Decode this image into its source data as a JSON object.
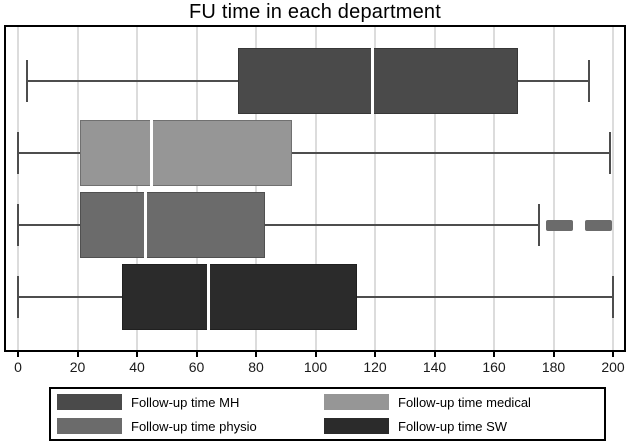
{
  "title": "FU time in each department",
  "chart_data": {
    "type": "boxplot",
    "orientation": "horizontal",
    "title": "FU time in each department",
    "xlabel": "",
    "ylabel": "",
    "xlim": [
      0,
      200
    ],
    "x_ticks": [
      0,
      20,
      40,
      60,
      80,
      100,
      120,
      140,
      160,
      180,
      200
    ],
    "grid": true,
    "legend_position": "bottom",
    "series": [
      {
        "name": "Follow-up time MH",
        "color": "#4a4a4a",
        "min": 3,
        "q1": 74,
        "median": 119,
        "q3": 168,
        "max": 192,
        "outliers": []
      },
      {
        "name": "Follow-up time medical",
        "color": "#969696",
        "min": 0,
        "q1": 21,
        "median": 45,
        "q3": 92,
        "max": 199,
        "outliers": []
      },
      {
        "name": "Follow-up time physio",
        "color": "#6b6b6b",
        "min": 0,
        "q1": 21,
        "median": 43,
        "q3": 83,
        "max": 175,
        "outliers": [
          182,
          195
        ]
      },
      {
        "name": "Follow-up time SW",
        "color": "#2b2b2b",
        "min": 0,
        "q1": 35,
        "median": 64,
        "q3": 114,
        "max": 200,
        "outliers": []
      }
    ]
  },
  "colors": {
    "gridline": "#dcdcdc",
    "whisker": "#4d4d4d",
    "frame": "#000000",
    "median_line": "#ffffff",
    "background": "#ffffff",
    "tick_label": "#1a1a1a"
  }
}
